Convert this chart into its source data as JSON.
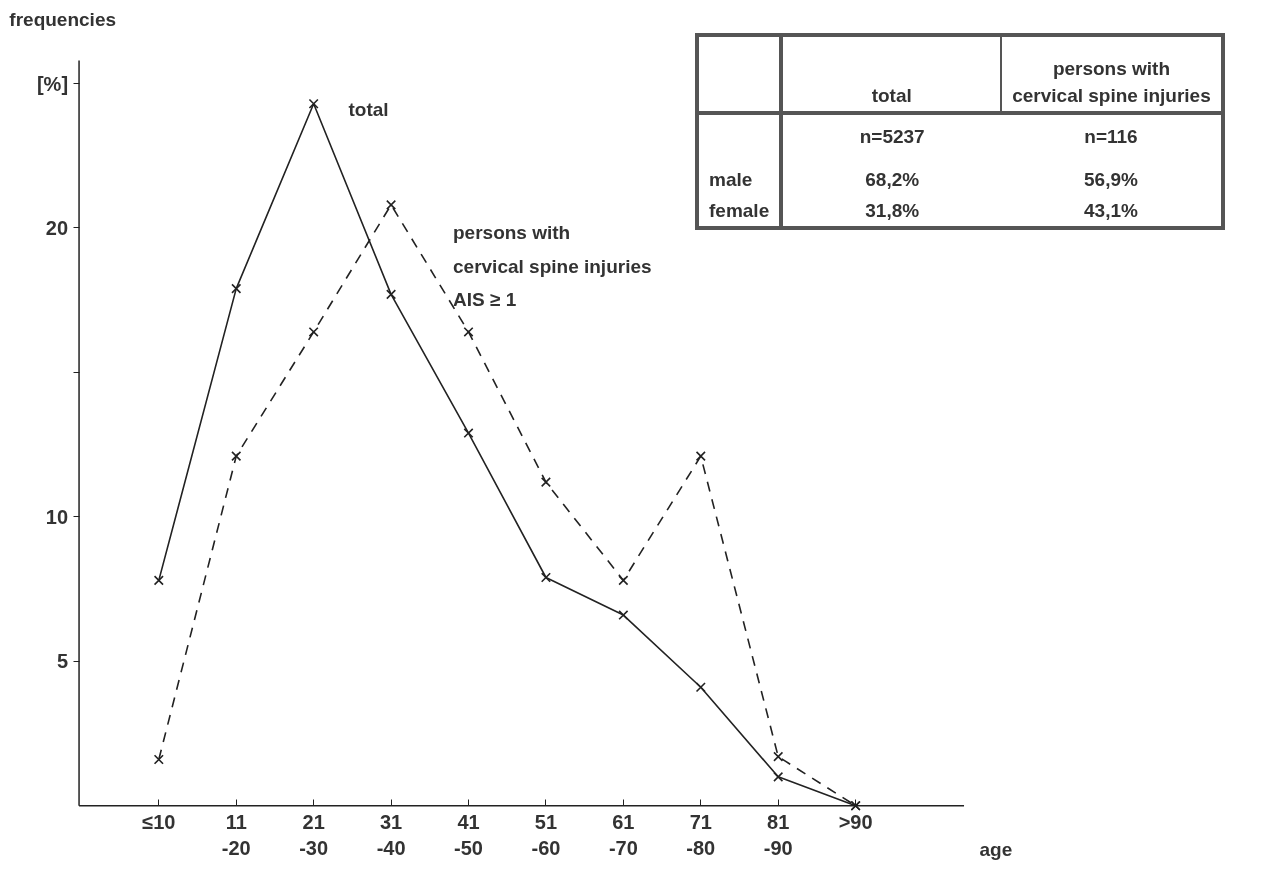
{
  "chart_data": {
    "type": "line",
    "ylabel": "frequencies",
    "xlabel": "age",
    "categories": [
      "≤10",
      "11\n-20",
      "21\n-30",
      "31\n-40",
      "41\n-50",
      "51\n-60",
      "61\n-70",
      "71\n-80",
      "81\n-90",
      ">90"
    ],
    "series": [
      {
        "name": "total",
        "color": "#222222",
        "line_style": "solid",
        "values": [
          7.8,
          17.9,
          24.3,
          17.7,
          12.9,
          7.9,
          6.6,
          4.1,
          1.0,
          0
        ]
      },
      {
        "name": "persons with\ncervical spine injuries\nAIS ≥ 1",
        "color": "#222222",
        "line_style": "dashed",
        "values": [
          1.6,
          12.1,
          16.4,
          20.8,
          16.4,
          11.2,
          7.8,
          12.1,
          1.7,
          0
        ]
      }
    ],
    "ylim": [
      0,
      25.8
    ],
    "yticks": [
      5,
      10,
      {
        "value": 15,
        "label": null
      },
      20,
      {
        "value": 25,
        "label": "[%]"
      }
    ],
    "marker": "cross",
    "grid": false,
    "legend": false,
    "annotations": [
      "total",
      "persons with\ncervical spine injuries",
      "n=5237",
      "n=116",
      "male",
      "68,2%",
      "56,9%",
      "female",
      "31,8%",
      "43,1%"
    ]
  }
}
